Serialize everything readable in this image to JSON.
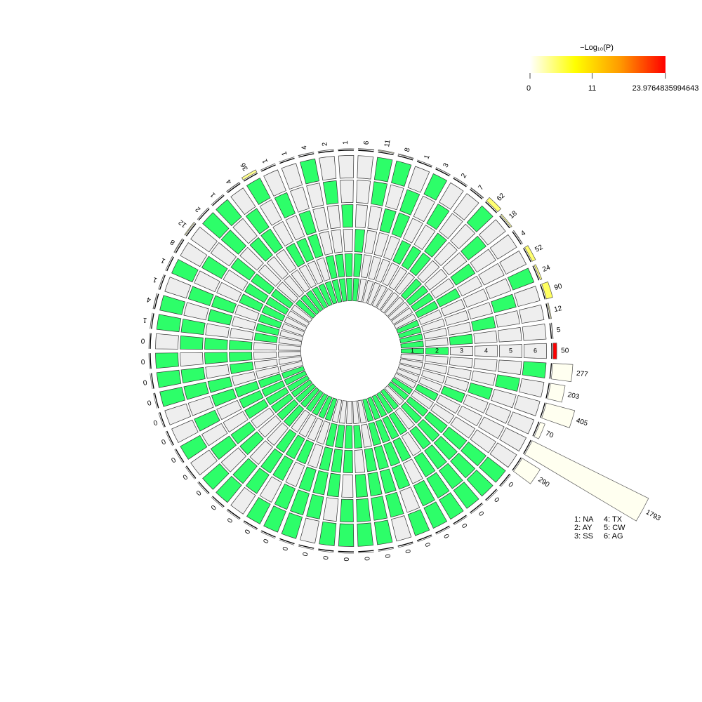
{
  "chart_data": {
    "type": "upset_circular",
    "sets": [
      "NA",
      "AY",
      "SS",
      "TX",
      "CW",
      "AG"
    ],
    "ring_labels": [
      "1",
      "2",
      "3",
      "4",
      "5",
      "6"
    ],
    "set_legend": [
      "1: NA",
      "2: AY",
      "3: SS",
      "4: TX",
      "5: CW",
      "6: AG"
    ],
    "values": [
      290,
      1793,
      70,
      405,
      203,
      277,
      50,
      5,
      12,
      90,
      24,
      52,
      4,
      18,
      62,
      7,
      2,
      3,
      1,
      8,
      11,
      6,
      1,
      2,
      4,
      1,
      1,
      36,
      4,
      1,
      2,
      12,
      8,
      1,
      1,
      4,
      1,
      0,
      0,
      0,
      0,
      0,
      0,
      0,
      0,
      0,
      0,
      0,
      0,
      0,
      0,
      0,
      0,
      0,
      0,
      0,
      0,
      0,
      0,
      0,
      0,
      0,
      0
    ],
    "neg_log10_p": [
      null,
      null,
      null,
      null,
      null,
      null,
      23.9764835994643,
      1.5,
      2.5,
      5,
      4,
      4.5,
      1,
      3,
      4.5,
      1,
      0.5,
      0.5,
      0.2,
      0.8,
      1.5,
      1,
      0.2,
      0.4,
      0.8,
      0.2,
      0.2,
      3.5,
      0.8,
      0.2,
      0.4,
      2.5,
      1.5,
      0.2,
      0.2,
      0.8,
      0.2,
      null,
      null,
      null,
      null,
      null,
      null,
      null,
      null,
      null,
      null,
      null,
      null,
      null,
      null,
      null,
      null,
      null,
      null,
      null,
      null,
      null,
      null,
      null,
      null,
      null,
      null
    ],
    "membership": [
      [
        1,
        0,
        0,
        0,
        0,
        0
      ],
      [
        0,
        1,
        0,
        0,
        0,
        0
      ],
      [
        0,
        0,
        1,
        0,
        0,
        0
      ],
      [
        0,
        0,
        0,
        1,
        0,
        0
      ],
      [
        0,
        0,
        0,
        0,
        1,
        0
      ],
      [
        0,
        0,
        0,
        0,
        0,
        1
      ],
      [
        1,
        1,
        0,
        0,
        0,
        0
      ],
      [
        1,
        0,
        1,
        0,
        0,
        0
      ],
      [
        1,
        0,
        0,
        1,
        0,
        0
      ],
      [
        1,
        0,
        0,
        0,
        1,
        0
      ],
      [
        1,
        0,
        0,
        0,
        0,
        1
      ],
      [
        0,
        1,
        1,
        0,
        0,
        0
      ],
      [
        0,
        1,
        0,
        1,
        0,
        0
      ],
      [
        0,
        1,
        0,
        0,
        1,
        0
      ],
      [
        0,
        1,
        0,
        0,
        0,
        1
      ],
      [
        0,
        0,
        1,
        1,
        0,
        0
      ],
      [
        0,
        0,
        1,
        0,
        1,
        0
      ],
      [
        0,
        0,
        1,
        0,
        0,
        1
      ],
      [
        0,
        0,
        0,
        1,
        1,
        0
      ],
      [
        0,
        0,
        0,
        1,
        0,
        1
      ],
      [
        0,
        0,
        0,
        0,
        1,
        1
      ],
      [
        1,
        1,
        1,
        0,
        0,
        0
      ],
      [
        1,
        1,
        0,
        1,
        0,
        0
      ],
      [
        1,
        1,
        0,
        0,
        1,
        0
      ],
      [
        1,
        1,
        0,
        0,
        0,
        1
      ],
      [
        1,
        0,
        1,
        1,
        0,
        0
      ],
      [
        1,
        0,
        1,
        0,
        1,
        0
      ],
      [
        1,
        0,
        1,
        0,
        0,
        1
      ],
      [
        1,
        0,
        0,
        1,
        1,
        0
      ],
      [
        1,
        0,
        0,
        1,
        0,
        1
      ],
      [
        1,
        0,
        0,
        0,
        1,
        1
      ],
      [
        0,
        1,
        1,
        1,
        0,
        0
      ],
      [
        0,
        1,
        1,
        0,
        1,
        0
      ],
      [
        0,
        1,
        1,
        0,
        0,
        1
      ],
      [
        0,
        1,
        0,
        1,
        1,
        0
      ],
      [
        0,
        1,
        0,
        1,
        0,
        1
      ],
      [
        0,
        1,
        0,
        0,
        1,
        1
      ],
      [
        0,
        0,
        1,
        1,
        1,
        0
      ],
      [
        0,
        0,
        1,
        1,
        0,
        1
      ],
      [
        0,
        0,
        1,
        0,
        1,
        1
      ],
      [
        0,
        0,
        0,
        1,
        1,
        1
      ],
      [
        1,
        1,
        1,
        1,
        0,
        0
      ],
      [
        1,
        1,
        1,
        0,
        1,
        0
      ],
      [
        1,
        1,
        1,
        0,
        0,
        1
      ],
      [
        1,
        1,
        0,
        1,
        1,
        0
      ],
      [
        1,
        1,
        0,
        1,
        0,
        1
      ],
      [
        1,
        1,
        0,
        0,
        1,
        1
      ],
      [
        1,
        0,
        1,
        1,
        1,
        0
      ],
      [
        1,
        0,
        1,
        1,
        0,
        1
      ],
      [
        1,
        0,
        1,
        0,
        1,
        1
      ],
      [
        1,
        0,
        0,
        1,
        1,
        1
      ],
      [
        0,
        1,
        1,
        1,
        1,
        0
      ],
      [
        0,
        1,
        1,
        1,
        0,
        1
      ],
      [
        0,
        1,
        1,
        0,
        1,
        1
      ],
      [
        0,
        1,
        0,
        1,
        1,
        1
      ],
      [
        0,
        0,
        1,
        1,
        1,
        1
      ],
      [
        1,
        1,
        1,
        1,
        1,
        0
      ],
      [
        1,
        1,
        1,
        1,
        0,
        1
      ],
      [
        1,
        1,
        1,
        0,
        1,
        1
      ],
      [
        1,
        1,
        0,
        1,
        1,
        1
      ],
      [
        1,
        0,
        1,
        1,
        1,
        1
      ],
      [
        0,
        1,
        1,
        1,
        1,
        1
      ],
      [
        1,
        1,
        1,
        1,
        1,
        1
      ]
    ],
    "member_color": "#2dfe69",
    "nonmember_color": "#eeeeee",
    "na_color": "#fffff0",
    "color_scale": [
      "#ffffff",
      "#ffff00",
      "#ff9900",
      "#ff0000"
    ],
    "legend_title": "−Log₁₀(P)",
    "clim": [
      0,
      23.9764835994643
    ],
    "cticks": [
      0,
      11,
      23.9764835994643
    ]
  }
}
